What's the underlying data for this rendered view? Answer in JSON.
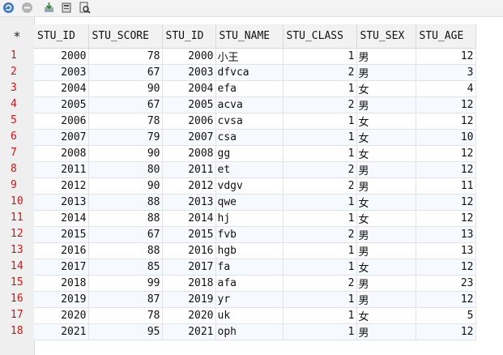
{
  "toolbar": {
    "icons": [
      "refresh-icon",
      "stop-icon",
      "import-icon",
      "export-icon",
      "search-document-icon"
    ]
  },
  "grid": {
    "corner": "*",
    "columns": [
      "STU_ID",
      "STU_SCORE",
      "STU_ID",
      "STU_NAME",
      "STU_CLASS",
      "STU_SEX",
      "STU_AGE"
    ],
    "row_numbers": [
      "1",
      "2",
      "3",
      "4",
      "5",
      "6",
      "7",
      "8",
      "9",
      "10",
      "11",
      "12",
      "13",
      "14",
      "15",
      "16",
      "17",
      "18"
    ],
    "rows": [
      [
        "2000",
        "78",
        "2000",
        "小王",
        "1",
        "男",
        "12"
      ],
      [
        "2003",
        "67",
        "2003",
        "dfvca",
        "2",
        "男",
        "3"
      ],
      [
        "2004",
        "90",
        "2004",
        "efa",
        "1",
        "女",
        "4"
      ],
      [
        "2005",
        "67",
        "2005",
        "acva",
        "2",
        "男",
        "12"
      ],
      [
        "2006",
        "78",
        "2006",
        "cvsa",
        "1",
        "女",
        "12"
      ],
      [
        "2007",
        "79",
        "2007",
        "csa",
        "1",
        "女",
        "10"
      ],
      [
        "2008",
        "90",
        "2008",
        "gg",
        "1",
        "女",
        "12"
      ],
      [
        "2011",
        "80",
        "2011",
        "et",
        "2",
        "男",
        "12"
      ],
      [
        "2012",
        "90",
        "2012",
        "vdgv",
        "2",
        "男",
        "11"
      ],
      [
        "2013",
        "88",
        "2013",
        "qwe",
        "1",
        "女",
        "12"
      ],
      [
        "2014",
        "88",
        "2014",
        "hj",
        "1",
        "女",
        "12"
      ],
      [
        "2015",
        "67",
        "2015",
        "fvb",
        "2",
        "男",
        "13"
      ],
      [
        "2016",
        "88",
        "2016",
        "hgb",
        "1",
        "男",
        "13"
      ],
      [
        "2017",
        "85",
        "2017",
        "fa",
        "1",
        "女",
        "12"
      ],
      [
        "2018",
        "99",
        "2018",
        "afa",
        "2",
        "男",
        "23"
      ],
      [
        "2019",
        "87",
        "2019",
        "yr",
        "1",
        "男",
        "12"
      ],
      [
        "2020",
        "78",
        "2020",
        "uk",
        "1",
        "女",
        "5"
      ],
      [
        "2021",
        "95",
        "2021",
        "oph",
        "1",
        "男",
        "12"
      ]
    ]
  }
}
